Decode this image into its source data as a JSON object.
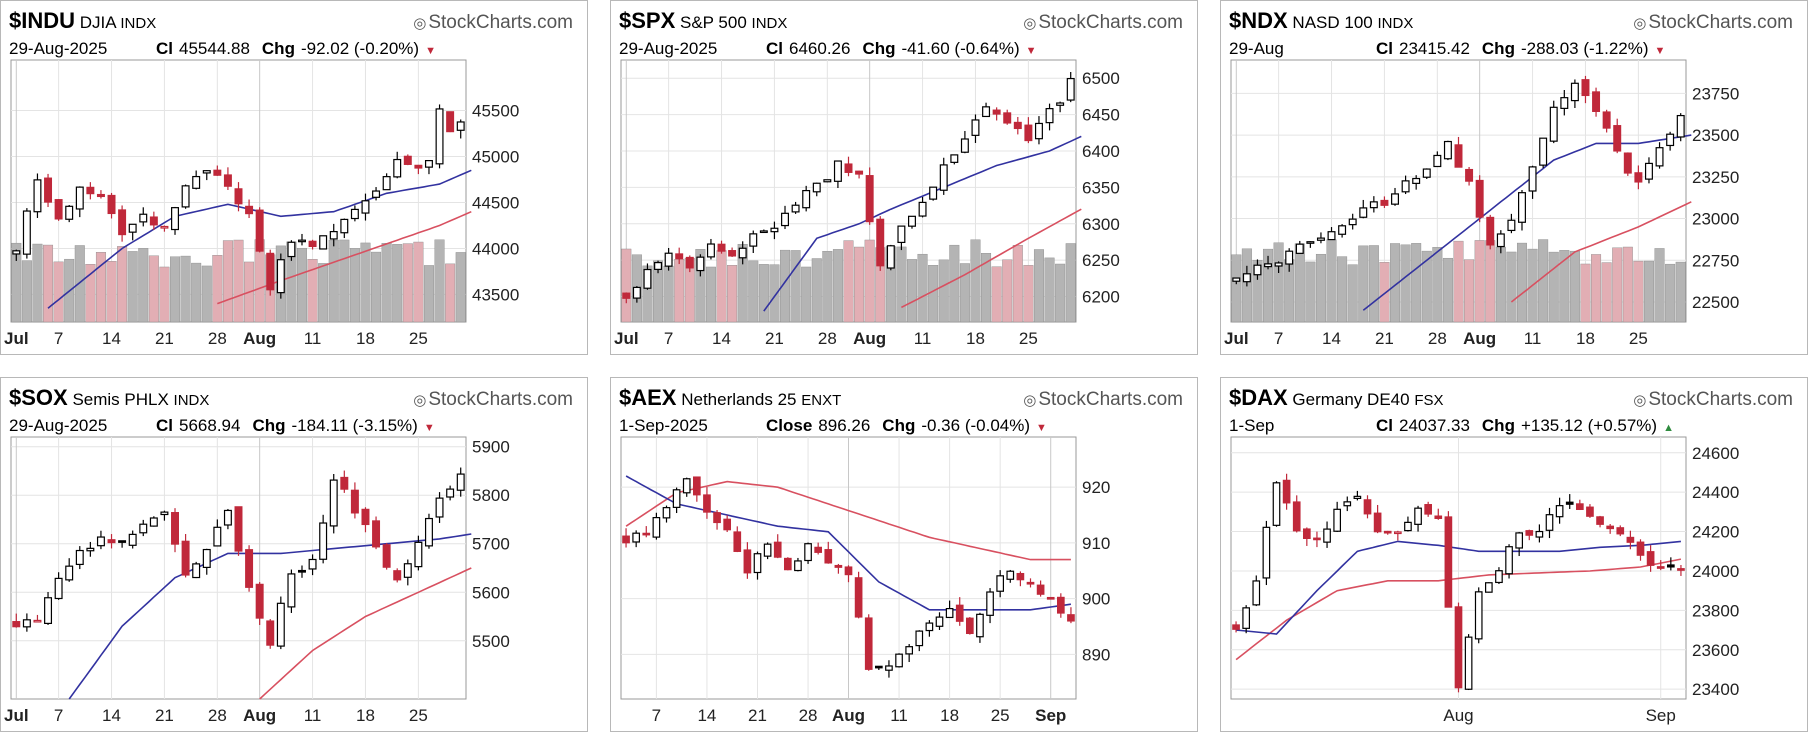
{
  "watermark": "StockCharts.com",
  "colors": {
    "up": "#000000",
    "down": "#c0283a",
    "ma_short": "#3232a0",
    "ma_long": "#d85060",
    "vol_up": "#b4b4b4",
    "vol_down": "#e2aeb4"
  },
  "chart_data": [
    {
      "type": "candlestick",
      "symbol": "$INDU",
      "name": "DJIA",
      "exchange": "INDX",
      "date": "29-Aug-2025",
      "close_label": "Cl",
      "close": "45544.88",
      "chg_label": "Chg",
      "chg": "-92.02 (-0.20%)",
      "direction": "down",
      "ylim": [
        43200,
        46050
      ],
      "y_ticks": [
        "45500",
        "45000",
        "44500",
        "44000",
        "43500"
      ],
      "x_labels": [
        "Jul",
        "7",
        "14",
        "21",
        "28",
        "Aug",
        "11",
        "18",
        "25"
      ],
      "x_bold": [
        "Jul",
        "Aug"
      ],
      "x_label_index": [
        0,
        4,
        9,
        14,
        19,
        23,
        28,
        33,
        38
      ],
      "n_bars": 43,
      "anchors": [
        [
          0,
          44000
        ],
        [
          2,
          44750
        ],
        [
          4,
          44300
        ],
        [
          6,
          44650
        ],
        [
          8,
          44600
        ],
        [
          10,
          44150
        ],
        [
          12,
          44400
        ],
        [
          14,
          44200
        ],
        [
          16,
          44700
        ],
        [
          18,
          44850
        ],
        [
          20,
          44700
        ],
        [
          22,
          44350
        ],
        [
          24,
          43600
        ],
        [
          26,
          44100
        ],
        [
          28,
          44050
        ],
        [
          30,
          44200
        ],
        [
          32,
          44400
        ],
        [
          34,
          44600
        ],
        [
          36,
          45000
        ],
        [
          38,
          44900
        ],
        [
          39,
          45000
        ],
        [
          40,
          45500
        ],
        [
          41,
          45300
        ],
        [
          43,
          45530
        ]
      ],
      "ma_short": [
        [
          3,
          43350
        ],
        [
          10,
          44000
        ],
        [
          15,
          44350
        ],
        [
          20,
          44480
        ],
        [
          25,
          44350
        ],
        [
          30,
          44400
        ],
        [
          35,
          44600
        ],
        [
          40,
          44700
        ],
        [
          43,
          44850
        ]
      ],
      "ma_long": [
        [
          19,
          43400
        ],
        [
          25,
          43650
        ],
        [
          30,
          43850
        ],
        [
          35,
          44050
        ],
        [
          40,
          44250
        ],
        [
          43,
          44400
        ]
      ],
      "volume_level": 0.3
    },
    {
      "type": "candlestick",
      "symbol": "$SPX",
      "name": "S&P 500",
      "exchange": "INDX",
      "date": "29-Aug-2025",
      "close_label": "Cl",
      "close": "6460.26",
      "chg_label": "Chg",
      "chg": "-41.60 (-0.64%)",
      "direction": "down",
      "ylim": [
        6165,
        6525
      ],
      "y_ticks": [
        "6500",
        "6450",
        "6400",
        "6350",
        "6300",
        "6250",
        "6200"
      ],
      "x_labels": [
        "Jul",
        "7",
        "14",
        "21",
        "28",
        "Aug",
        "11",
        "18",
        "25"
      ],
      "x_bold": [
        "Jul",
        "Aug"
      ],
      "x_label_index": [
        0,
        4,
        9,
        14,
        19,
        23,
        28,
        33,
        38
      ],
      "n_bars": 43,
      "anchors": [
        [
          0,
          6200
        ],
        [
          2,
          6235
        ],
        [
          4,
          6260
        ],
        [
          6,
          6245
        ],
        [
          8,
          6270
        ],
        [
          10,
          6255
        ],
        [
          12,
          6280
        ],
        [
          14,
          6300
        ],
        [
          16,
          6330
        ],
        [
          18,
          6350
        ],
        [
          20,
          6380
        ],
        [
          22,
          6370
        ],
        [
          24,
          6240
        ],
        [
          26,
          6300
        ],
        [
          28,
          6330
        ],
        [
          30,
          6380
        ],
        [
          32,
          6420
        ],
        [
          34,
          6460
        ],
        [
          36,
          6440
        ],
        [
          38,
          6420
        ],
        [
          40,
          6460
        ],
        [
          41,
          6470
        ],
        [
          42,
          6500
        ],
        [
          43,
          6460
        ]
      ],
      "ma_short": [
        [
          13,
          6180
        ],
        [
          18,
          6280
        ],
        [
          22,
          6300
        ],
        [
          25,
          6320
        ],
        [
          30,
          6350
        ],
        [
          35,
          6380
        ],
        [
          40,
          6400
        ],
        [
          43,
          6420
        ]
      ],
      "ma_long": [
        [
          26,
          6185
        ],
        [
          32,
          6230
        ],
        [
          38,
          6280
        ],
        [
          43,
          6320
        ]
      ],
      "volume_level": 0.3
    },
    {
      "type": "candlestick",
      "symbol": "$NDX",
      "name": "NASD 100",
      "exchange": "INDX",
      "date": "29-Aug",
      "close_label": "Cl",
      "close": "23415.42",
      "chg_label": "Chg",
      "chg": "-288.03 (-1.22%)",
      "direction": "down",
      "ylim": [
        22380,
        23950
      ],
      "y_ticks": [
        "23750",
        "23500",
        "23250",
        "23000",
        "22750",
        "22500"
      ],
      "x_labels": [
        "Jul",
        "7",
        "14",
        "21",
        "28",
        "Aug",
        "11",
        "18",
        "25"
      ],
      "x_bold": [
        "Jul",
        "Aug"
      ],
      "x_label_index": [
        0,
        4,
        9,
        14,
        19,
        23,
        28,
        33,
        38
      ],
      "n_bars": 43,
      "anchors": [
        [
          0,
          22650
        ],
        [
          2,
          22700
        ],
        [
          4,
          22750
        ],
        [
          6,
          22850
        ],
        [
          8,
          22900
        ],
        [
          10,
          22950
        ],
        [
          12,
          23050
        ],
        [
          14,
          23100
        ],
        [
          16,
          23200
        ],
        [
          18,
          23300
        ],
        [
          20,
          23450
        ],
        [
          22,
          23200
        ],
        [
          24,
          22850
        ],
        [
          26,
          23000
        ],
        [
          28,
          23300
        ],
        [
          30,
          23650
        ],
        [
          32,
          23800
        ],
        [
          34,
          23650
        ],
        [
          36,
          23400
        ],
        [
          38,
          23200
        ],
        [
          40,
          23450
        ],
        [
          42,
          23600
        ],
        [
          43,
          23420
        ]
      ],
      "ma_short": [
        [
          12,
          22450
        ],
        [
          18,
          22750
        ],
        [
          22,
          22950
        ],
        [
          26,
          23150
        ],
        [
          30,
          23350
        ],
        [
          34,
          23450
        ],
        [
          38,
          23450
        ],
        [
          43,
          23500
        ]
      ],
      "ma_long": [
        [
          26,
          22500
        ],
        [
          32,
          22800
        ],
        [
          38,
          22950
        ],
        [
          43,
          23100
        ]
      ],
      "volume_level": 0.3
    },
    {
      "type": "candlestick",
      "symbol": "$SOX",
      "name": "Semis PHLX",
      "exchange": "INDX",
      "date": "29-Aug-2025",
      "close_label": "Cl",
      "close": "5668.94",
      "chg_label": "Chg",
      "chg": "-184.11 (-3.15%)",
      "direction": "down",
      "ylim": [
        5380,
        5920
      ],
      "y_ticks": [
        "5900",
        "5800",
        "5700",
        "5600",
        "5500"
      ],
      "x_labels": [
        "Jul",
        "7",
        "14",
        "21",
        "28",
        "Aug",
        "11",
        "18",
        "25"
      ],
      "x_bold": [
        "Jul",
        "Aug"
      ],
      "x_label_index": [
        0,
        4,
        9,
        14,
        19,
        23,
        28,
        33,
        38
      ],
      "n_bars": 43,
      "anchors": [
        [
          0,
          5530
        ],
        [
          2,
          5550
        ],
        [
          4,
          5620
        ],
        [
          6,
          5680
        ],
        [
          8,
          5710
        ],
        [
          10,
          5700
        ],
        [
          12,
          5740
        ],
        [
          14,
          5770
        ],
        [
          16,
          5630
        ],
        [
          18,
          5680
        ],
        [
          20,
          5770
        ],
        [
          22,
          5610
        ],
        [
          24,
          5500
        ],
        [
          26,
          5640
        ],
        [
          28,
          5660
        ],
        [
          30,
          5840
        ],
        [
          32,
          5770
        ],
        [
          34,
          5700
        ],
        [
          36,
          5620
        ],
        [
          38,
          5700
        ],
        [
          40,
          5790
        ],
        [
          42,
          5850
        ],
        [
          43,
          5670
        ]
      ],
      "ma_short": [
        [
          5,
          5380
        ],
        [
          10,
          5530
        ],
        [
          15,
          5630
        ],
        [
          20,
          5680
        ],
        [
          25,
          5680
        ],
        [
          30,
          5690
        ],
        [
          35,
          5700
        ],
        [
          40,
          5710
        ],
        [
          43,
          5720
        ]
      ],
      "ma_long": [
        [
          23,
          5380
        ],
        [
          28,
          5480
        ],
        [
          33,
          5550
        ],
        [
          38,
          5600
        ],
        [
          43,
          5650
        ]
      ],
      "volume_level": 0
    },
    {
      "type": "candlestick",
      "symbol": "$AEX",
      "name": "Netherlands 25",
      "exchange": "ENXT",
      "date": "1-Sep-2025",
      "close_label": "Close",
      "close": "896.26",
      "chg_label": "Chg",
      "chg": "-0.36 (-0.04%)",
      "direction": "down",
      "ylim": [
        882,
        929
      ],
      "y_ticks": [
        "920",
        "910",
        "900",
        "890"
      ],
      "x_labels": [
        "7",
        "14",
        "21",
        "28",
        "Aug",
        "11",
        "18",
        "25",
        "Sep"
      ],
      "x_bold": [
        "Aug",
        "Sep"
      ],
      "x_label_index": [
        3,
        8,
        13,
        18,
        22,
        27,
        32,
        37,
        42
      ],
      "n_bars": 45,
      "anchors": [
        [
          0,
          910
        ],
        [
          2,
          912
        ],
        [
          4,
          916
        ],
        [
          6,
          922
        ],
        [
          8,
          916
        ],
        [
          10,
          912
        ],
        [
          12,
          905
        ],
        [
          14,
          910
        ],
        [
          16,
          905
        ],
        [
          18,
          910
        ],
        [
          20,
          907
        ],
        [
          22,
          905
        ],
        [
          24,
          887
        ],
        [
          26,
          888
        ],
        [
          28,
          892
        ],
        [
          30,
          896
        ],
        [
          32,
          898
        ],
        [
          34,
          893
        ],
        [
          36,
          902
        ],
        [
          38,
          905
        ],
        [
          40,
          903
        ],
        [
          42,
          900
        ],
        [
          44,
          896
        ]
      ],
      "ma_short": [
        [
          0,
          922
        ],
        [
          5,
          917
        ],
        [
          10,
          915
        ],
        [
          15,
          913
        ],
        [
          20,
          912
        ],
        [
          25,
          903
        ],
        [
          30,
          898
        ],
        [
          35,
          898
        ],
        [
          40,
          898
        ],
        [
          44,
          899
        ]
      ],
      "ma_long": [
        [
          0,
          913
        ],
        [
          5,
          919
        ],
        [
          10,
          921
        ],
        [
          15,
          920
        ],
        [
          20,
          917
        ],
        [
          25,
          914
        ],
        [
          30,
          911
        ],
        [
          35,
          909
        ],
        [
          40,
          907
        ],
        [
          44,
          907
        ]
      ],
      "volume_level": 0
    },
    {
      "type": "candlestick",
      "symbol": "$DAX",
      "name": "Germany DE40",
      "exchange": "FSX",
      "date": "1-Sep",
      "close_label": "Cl",
      "close": "24037.33",
      "chg_label": "Chg",
      "chg": "+135.12 (+0.57%)",
      "direction": "up",
      "ylim": [
        23350,
        24680
      ],
      "y_ticks": [
        "24600",
        "24400",
        "24200",
        "24000",
        "23800",
        "23600",
        "23400"
      ],
      "x_labels": [
        "Aug",
        "Sep"
      ],
      "x_bold": [],
      "x_label_index": [
        22,
        42
      ],
      "n_bars": 45,
      "anchors": [
        [
          0,
          23700
        ],
        [
          2,
          23950
        ],
        [
          4,
          24450
        ],
        [
          6,
          24200
        ],
        [
          8,
          24150
        ],
        [
          10,
          24300
        ],
        [
          12,
          24400
        ],
        [
          14,
          24200
        ],
        [
          16,
          24200
        ],
        [
          18,
          24300
        ],
        [
          20,
          24250
        ],
        [
          22,
          23400
        ],
        [
          24,
          23900
        ],
        [
          26,
          24000
        ],
        [
          28,
          24200
        ],
        [
          30,
          24200
        ],
        [
          32,
          24350
        ],
        [
          34,
          24300
        ],
        [
          36,
          24250
        ],
        [
          38,
          24200
        ],
        [
          40,
          24100
        ],
        [
          42,
          24000
        ],
        [
          44,
          24030
        ]
      ],
      "ma_short": [
        [
          0,
          23700
        ],
        [
          4,
          23680
        ],
        [
          8,
          23900
        ],
        [
          12,
          24100
        ],
        [
          16,
          24150
        ],
        [
          20,
          24130
        ],
        [
          24,
          24100
        ],
        [
          28,
          24100
        ],
        [
          32,
          24100
        ],
        [
          36,
          24120
        ],
        [
          40,
          24130
        ],
        [
          44,
          24150
        ]
      ],
      "ma_long": [
        [
          0,
          23550
        ],
        [
          5,
          23750
        ],
        [
          10,
          23900
        ],
        [
          15,
          23950
        ],
        [
          20,
          23950
        ],
        [
          25,
          23980
        ],
        [
          30,
          23990
        ],
        [
          35,
          24000
        ],
        [
          40,
          24020
        ],
        [
          44,
          24060
        ]
      ],
      "volume_level": 0
    }
  ]
}
